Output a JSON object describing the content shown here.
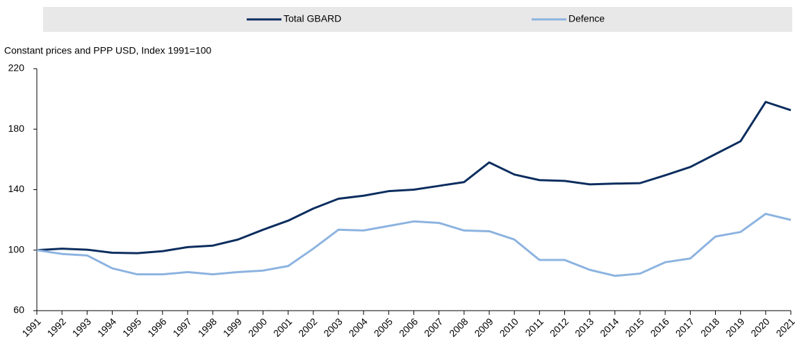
{
  "chart_data": {
    "type": "line",
    "axis_title": "Constant prices and PPP USD, Index 1991=100",
    "categories": [
      "1991",
      "1992",
      "1993",
      "1994",
      "1995",
      "1996",
      "1997",
      "1998",
      "1999",
      "2000",
      "2001",
      "2002",
      "2003",
      "2004",
      "2005",
      "2006",
      "2007",
      "2008",
      "2009",
      "2010",
      "2011",
      "2012",
      "2013",
      "2014",
      "2015",
      "2016",
      "2017",
      "2018",
      "2019",
      "2020",
      "2021"
    ],
    "series": [
      {
        "name": "Total GBARD",
        "color": "#0b2d5e",
        "values": [
          100,
          101,
          100.3,
          98.3,
          98,
          99.3,
          102,
          103,
          107,
          113.5,
          119.5,
          127.5,
          134,
          136,
          139,
          140,
          142.5,
          145,
          158,
          150,
          146.3,
          145.8,
          143.5,
          144,
          144.3,
          149.5,
          155,
          163.5,
          172,
          198,
          192.5
        ]
      },
      {
        "name": "Defence",
        "color": "#8cb3e0",
        "values": [
          100,
          97.5,
          96.5,
          88,
          84,
          84,
          85.5,
          84,
          85.5,
          86.5,
          89.5,
          101,
          113.5,
          113,
          116,
          119,
          118,
          113,
          112.5,
          107,
          93.5,
          93.5,
          87,
          83,
          84.5,
          92,
          94.5,
          109,
          112,
          124,
          120
        ]
      }
    ],
    "ylim": [
      60,
      220
    ],
    "yticks": [
      60,
      100,
      140,
      180,
      220
    ],
    "legend": "top"
  }
}
